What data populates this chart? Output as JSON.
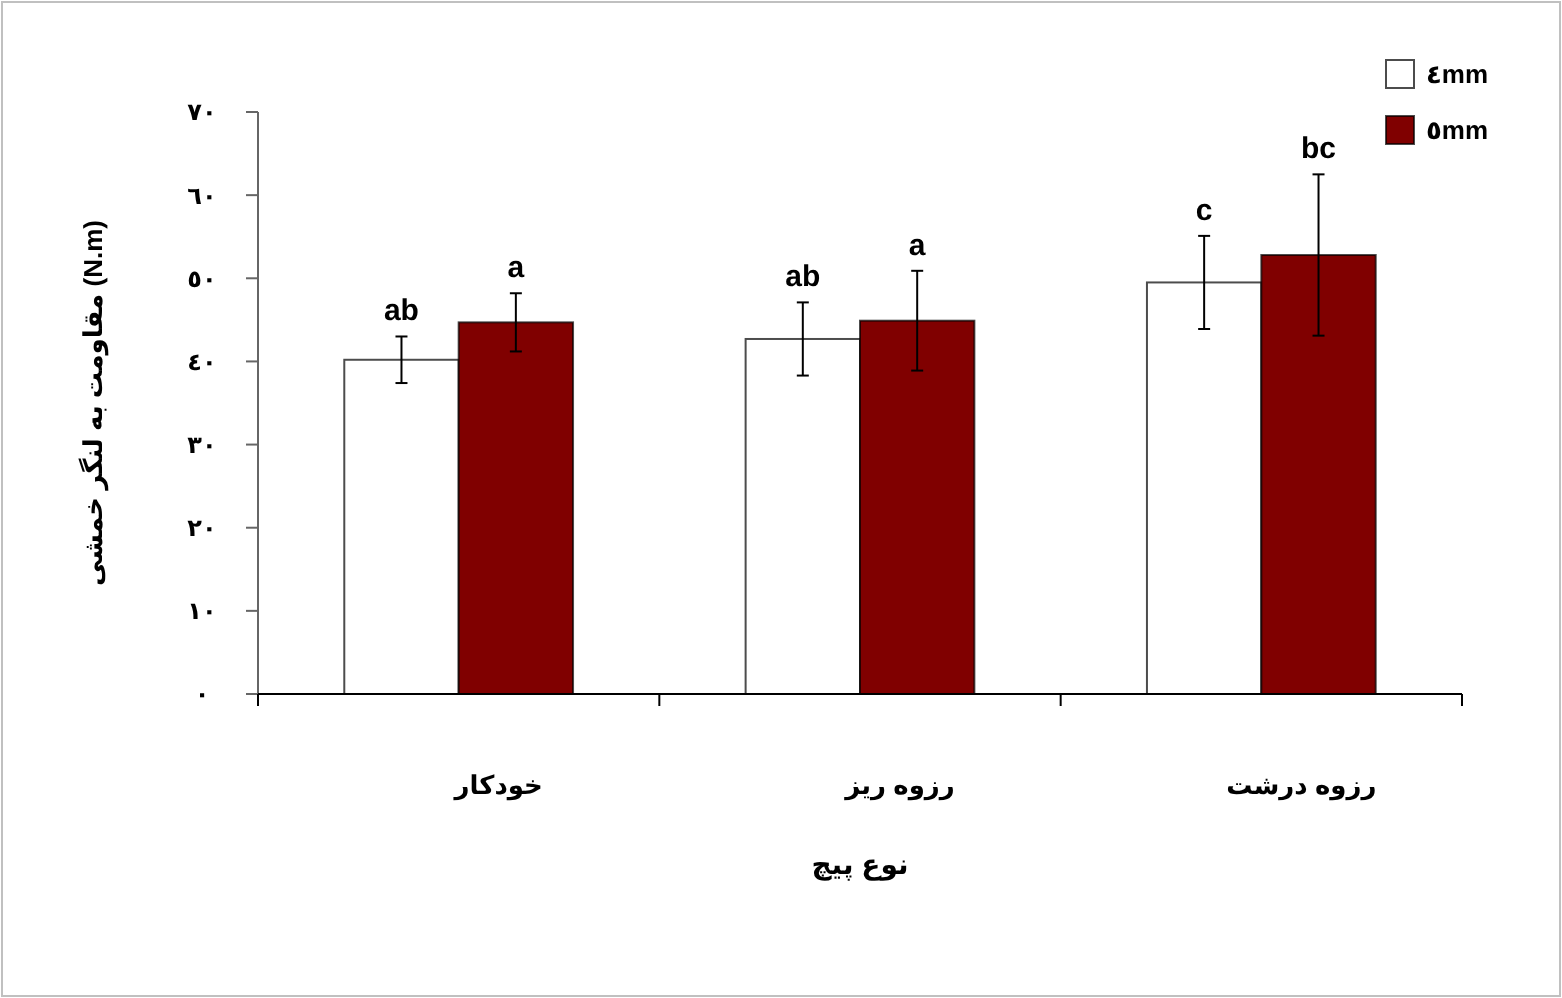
{
  "chart_data": {
    "type": "bar",
    "xlabel": "نوع پیچ",
    "ylabel": "مقاومت به لنگر خمشی (N.m)",
    "categories": [
      "خودکار",
      "رزوه ریز",
      "رزوه درشت"
    ],
    "series": [
      {
        "name": "٤mm",
        "color": "#ffffff",
        "values": [
          40.2,
          42.7,
          49.5
        ],
        "errors": [
          2.8,
          4.4,
          5.6
        ]
      },
      {
        "name": "٥mm",
        "color": "#800000",
        "values": [
          44.7,
          44.9,
          52.8
        ],
        "errors": [
          3.5,
          6,
          9.7
        ]
      }
    ],
    "ylim": [
      0,
      70
    ],
    "yticks": [
      {
        "value": 0,
        "label": "٠"
      },
      {
        "value": 10,
        "label": "١٠"
      },
      {
        "value": 20,
        "label": "٢٠"
      },
      {
        "value": 30,
        "label": "٣٠"
      },
      {
        "value": 40,
        "label": "٤٠"
      },
      {
        "value": 50,
        "label": "٥٠"
      },
      {
        "value": 60,
        "label": "٦٠"
      },
      {
        "value": 70,
        "label": "٧٠"
      }
    ],
    "annotations": [
      "ab",
      "a",
      "ab",
      "a",
      "c",
      "bc"
    ],
    "legend": "top right",
    "grid": false
  }
}
